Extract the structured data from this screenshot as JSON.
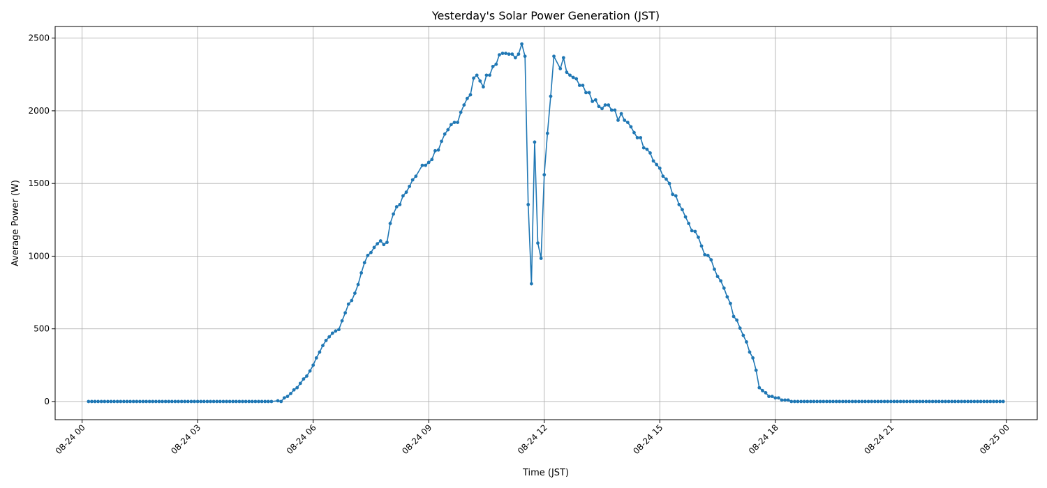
{
  "chart_data": {
    "type": "line",
    "title": "Yesterday's Solar Power Generation (JST)",
    "xlabel": "Time (JST)",
    "ylabel": "Average Power (W)",
    "xlim_hours": [
      -0.7,
      24.8
    ],
    "ylim": [
      -125,
      2580
    ],
    "grid": true,
    "marker": "circle",
    "color": "#1f77b4",
    "x_ticks": [
      {
        "hour": 0,
        "label": "08-24 00"
      },
      {
        "hour": 3,
        "label": "08-24 03"
      },
      {
        "hour": 6,
        "label": "08-24 06"
      },
      {
        "hour": 9,
        "label": "08-24 09"
      },
      {
        "hour": 12,
        "label": "08-24 12"
      },
      {
        "hour": 15,
        "label": "08-24 15"
      },
      {
        "hour": 18,
        "label": "08-24 18"
      },
      {
        "hour": 21,
        "label": "08-24 21"
      },
      {
        "hour": 24,
        "label": "08-25 00"
      }
    ],
    "y_ticks": [
      {
        "value": 0,
        "label": "0"
      },
      {
        "value": 500,
        "label": "500"
      },
      {
        "value": 1000,
        "label": "1000"
      },
      {
        "value": 1500,
        "label": "1500"
      },
      {
        "value": 2000,
        "label": "2000"
      },
      {
        "value": 2500,
        "label": "2500"
      }
    ],
    "series": [
      {
        "name": "Average Power (W)",
        "interval_minutes": 5,
        "start_hour": 0.1667,
        "end_hour": 5.0,
        "fill_value": 0,
        "points": [
          [
            5.083,
            5
          ],
          [
            5.167,
            0
          ],
          [
            5.25,
            25
          ],
          [
            5.333,
            35
          ],
          [
            5.417,
            55
          ],
          [
            5.5,
            80
          ],
          [
            5.583,
            95
          ],
          [
            5.667,
            125
          ],
          [
            5.75,
            155
          ],
          [
            5.833,
            175
          ],
          [
            5.917,
            210
          ],
          [
            6.0,
            250
          ],
          [
            6.083,
            300
          ],
          [
            6.167,
            340
          ],
          [
            6.25,
            385
          ],
          [
            6.333,
            420
          ],
          [
            6.417,
            445
          ],
          [
            6.5,
            470
          ],
          [
            6.583,
            485
          ],
          [
            6.667,
            495
          ],
          [
            6.75,
            555
          ],
          [
            6.833,
            610
          ],
          [
            6.917,
            670
          ],
          [
            7.0,
            695
          ],
          [
            7.083,
            745
          ],
          [
            7.167,
            805
          ],
          [
            7.25,
            885
          ],
          [
            7.333,
            955
          ],
          [
            7.417,
            1005
          ],
          [
            7.5,
            1025
          ],
          [
            7.583,
            1060
          ],
          [
            7.667,
            1085
          ],
          [
            7.75,
            1105
          ],
          [
            7.833,
            1080
          ],
          [
            7.917,
            1095
          ],
          [
            8.0,
            1225
          ],
          [
            8.083,
            1290
          ],
          [
            8.167,
            1340
          ],
          [
            8.25,
            1355
          ],
          [
            8.333,
            1415
          ],
          [
            8.417,
            1440
          ],
          [
            8.5,
            1480
          ],
          [
            8.583,
            1525
          ],
          [
            8.667,
            1550
          ],
          [
            8.833,
            1625
          ],
          [
            8.917,
            1625
          ],
          [
            9.0,
            1645
          ],
          [
            9.083,
            1665
          ],
          [
            9.167,
            1725
          ],
          [
            9.25,
            1730
          ],
          [
            9.333,
            1790
          ],
          [
            9.417,
            1840
          ],
          [
            9.5,
            1870
          ],
          [
            9.583,
            1905
          ],
          [
            9.667,
            1920
          ],
          [
            9.75,
            1920
          ],
          [
            9.833,
            1990
          ],
          [
            9.917,
            2040
          ],
          [
            10.0,
            2085
          ],
          [
            10.083,
            2110
          ],
          [
            10.167,
            2225
          ],
          [
            10.25,
            2245
          ],
          [
            10.333,
            2205
          ],
          [
            10.417,
            2165
          ],
          [
            10.5,
            2245
          ],
          [
            10.583,
            2245
          ],
          [
            10.667,
            2305
          ],
          [
            10.75,
            2320
          ],
          [
            10.833,
            2385
          ],
          [
            10.917,
            2395
          ],
          [
            11.0,
            2395
          ],
          [
            11.083,
            2390
          ],
          [
            11.167,
            2390
          ],
          [
            11.25,
            2365
          ],
          [
            11.333,
            2390
          ],
          [
            11.417,
            2460
          ],
          [
            11.5,
            2375
          ],
          [
            11.583,
            1355
          ],
          [
            11.667,
            810
          ],
          [
            11.75,
            1785
          ],
          [
            11.833,
            1090
          ],
          [
            11.917,
            985
          ],
          [
            12.0,
            1560
          ],
          [
            12.083,
            1845
          ],
          [
            12.167,
            2100
          ],
          [
            12.25,
            2375
          ],
          [
            12.417,
            2290
          ],
          [
            12.5,
            2365
          ],
          [
            12.583,
            2265
          ],
          [
            12.667,
            2245
          ],
          [
            12.75,
            2230
          ],
          [
            12.833,
            2220
          ],
          [
            12.917,
            2175
          ],
          [
            13.0,
            2175
          ],
          [
            13.083,
            2125
          ],
          [
            13.167,
            2125
          ],
          [
            13.25,
            2065
          ],
          [
            13.333,
            2075
          ],
          [
            13.417,
            2030
          ],
          [
            13.5,
            2015
          ],
          [
            13.583,
            2040
          ],
          [
            13.667,
            2040
          ],
          [
            13.75,
            2005
          ],
          [
            13.833,
            2005
          ],
          [
            13.917,
            1935
          ],
          [
            14.0,
            1980
          ],
          [
            14.083,
            1935
          ],
          [
            14.167,
            1920
          ],
          [
            14.25,
            1890
          ],
          [
            14.333,
            1850
          ],
          [
            14.417,
            1815
          ],
          [
            14.5,
            1815
          ],
          [
            14.583,
            1745
          ],
          [
            14.667,
            1735
          ],
          [
            14.75,
            1710
          ],
          [
            14.833,
            1655
          ],
          [
            14.917,
            1630
          ],
          [
            15.0,
            1605
          ],
          [
            15.083,
            1550
          ],
          [
            15.167,
            1530
          ],
          [
            15.25,
            1500
          ],
          [
            15.333,
            1425
          ],
          [
            15.417,
            1415
          ],
          [
            15.5,
            1355
          ],
          [
            15.583,
            1320
          ],
          [
            15.667,
            1270
          ],
          [
            15.75,
            1225
          ],
          [
            15.833,
            1175
          ],
          [
            15.917,
            1170
          ],
          [
            16.0,
            1130
          ],
          [
            16.083,
            1070
          ],
          [
            16.167,
            1010
          ],
          [
            16.25,
            1005
          ],
          [
            16.333,
            975
          ],
          [
            16.417,
            910
          ],
          [
            16.5,
            860
          ],
          [
            16.583,
            830
          ],
          [
            16.667,
            780
          ],
          [
            16.75,
            720
          ],
          [
            16.833,
            675
          ],
          [
            16.917,
            585
          ],
          [
            17.0,
            560
          ],
          [
            17.083,
            505
          ],
          [
            17.167,
            455
          ],
          [
            17.25,
            410
          ],
          [
            17.333,
            340
          ],
          [
            17.417,
            300
          ],
          [
            17.5,
            215
          ],
          [
            17.583,
            95
          ],
          [
            17.667,
            75
          ],
          [
            17.75,
            60
          ],
          [
            17.833,
            35
          ],
          [
            17.917,
            35
          ],
          [
            18.0,
            25
          ],
          [
            18.083,
            25
          ],
          [
            18.167,
            10
          ],
          [
            18.25,
            10
          ],
          [
            18.333,
            10
          ]
        ],
        "tail_start_hour": 18.4167,
        "tail_end_hour": 24.0,
        "tail_value": 0
      }
    ]
  }
}
